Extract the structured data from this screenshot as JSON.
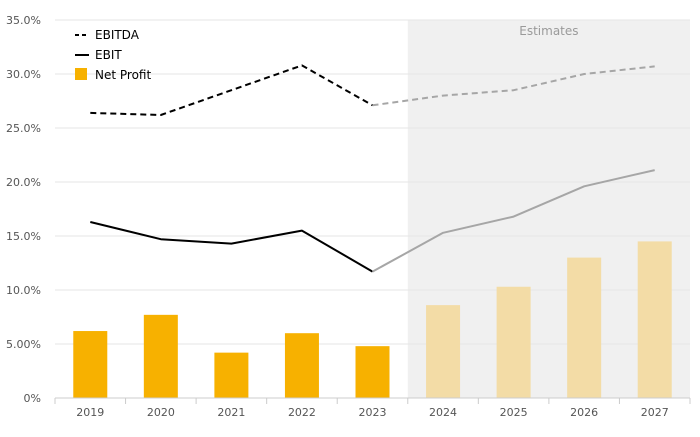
{
  "chart_data": {
    "type": "bar",
    "categories": [
      "2019",
      "2020",
      "2021",
      "2022",
      "2023",
      "2024",
      "2025",
      "2026",
      "2027"
    ],
    "estimate_start_index": 5,
    "estimate_label": "Estimates",
    "ylim": [
      0,
      35
    ],
    "yticks": [
      0,
      5,
      10,
      15,
      20,
      25,
      30,
      35
    ],
    "ytick_labels": [
      "0%",
      "5.00%",
      "10.0%",
      "15.0%",
      "20.0%",
      "25.0%",
      "30.0%",
      "35.0%"
    ],
    "grid": true,
    "legend_position": "top-left",
    "series": [
      {
        "name": "EBITDA",
        "kind": "line",
        "style": "dashed",
        "values": [
          26.4,
          26.2,
          28.5,
          30.8,
          27.1,
          28.0,
          28.5,
          30.0,
          30.7
        ]
      },
      {
        "name": "EBIT",
        "kind": "line",
        "style": "solid",
        "values": [
          16.3,
          14.7,
          14.3,
          15.5,
          11.7,
          15.3,
          16.8,
          19.6,
          21.1
        ]
      },
      {
        "name": "Net Profit",
        "kind": "bar",
        "values": [
          6.2,
          7.7,
          4.2,
          6.0,
          4.8,
          8.6,
          10.3,
          13.0,
          14.5
        ]
      }
    ],
    "colors": {
      "bar_actual": "#f7b100",
      "bar_estimate": "#f3dca6",
      "line_actual": "#000000",
      "line_estimate": "#a6a6a6",
      "estimate_bg": "#f0f0f0",
      "grid": "#e6e6e6",
      "axis_text": "#555555",
      "estimate_text": "#9a9a9a"
    }
  }
}
